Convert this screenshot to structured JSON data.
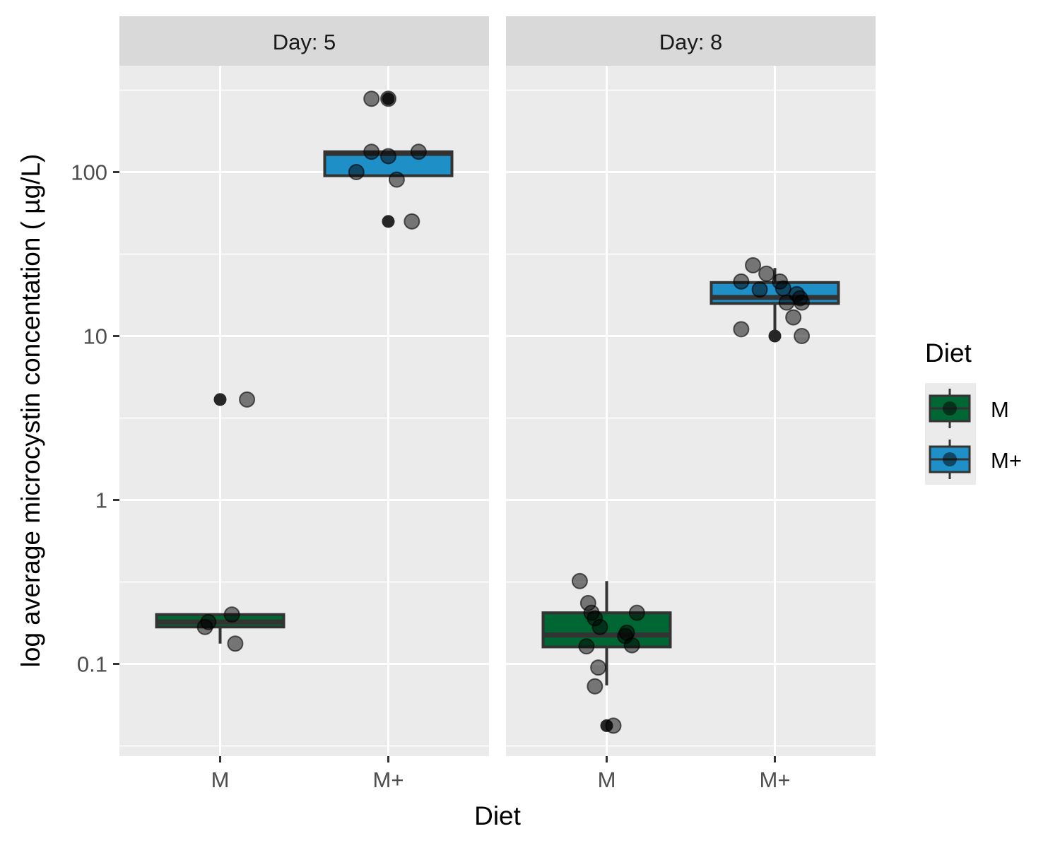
{
  "chart_data": {
    "type": "box",
    "ylabel": "log average microcystin concentation ( µg/L)",
    "xlabel": "Diet",
    "y_scale": "log10",
    "ylim": [
      0.028,
      520
    ],
    "y_ticks": [
      {
        "value": 0.1,
        "label": "0.1"
      },
      {
        "value": 1,
        "label": "1"
      },
      {
        "value": 10,
        "label": "10"
      },
      {
        "value": 100,
        "label": "100"
      }
    ],
    "categories": [
      "M",
      "M+"
    ],
    "legend": {
      "title": "Diet",
      "position": "right",
      "entries": [
        {
          "label": "M",
          "color": "#006633"
        },
        {
          "label": "M+",
          "color": "#1f8fc8"
        }
      ]
    },
    "facets": [
      {
        "label": "Day: 5",
        "groups": [
          {
            "diet": "M",
            "box": {
              "q1": 0.168,
              "median": 0.18,
              "q3": 0.2,
              "whisker_low": 0.133,
              "whisker_high": 0.2
            },
            "outliers": [
              4.1
            ],
            "points": [
              {
                "x": -0.09,
                "y": 0.168
              },
              {
                "x": -0.07,
                "y": 0.18
              },
              {
                "x": 0.07,
                "y": 0.2
              },
              {
                "x": 0.09,
                "y": 0.133
              },
              {
                "x": 0.16,
                "y": 4.1
              }
            ]
          },
          {
            "diet": "M+",
            "box": {
              "q1": 95,
              "median": 130,
              "q3": 133,
              "whisker_low": 95,
              "whisker_high": 133
            },
            "outliers": [
              280,
              50
            ],
            "points": [
              {
                "x": -0.1,
                "y": 280
              },
              {
                "x": 0.0,
                "y": 280
              },
              {
                "x": -0.1,
                "y": 133
              },
              {
                "x": 0.0,
                "y": 125
              },
              {
                "x": 0.18,
                "y": 133
              },
              {
                "x": -0.19,
                "y": 100
              },
              {
                "x": 0.05,
                "y": 90
              },
              {
                "x": 0.14,
                "y": 50
              }
            ]
          }
        ]
      },
      {
        "label": "Day: 8",
        "groups": [
          {
            "diet": "M",
            "box": {
              "q1": 0.127,
              "median": 0.15,
              "q3": 0.205,
              "whisker_low": 0.074,
              "whisker_high": 0.32
            },
            "outliers": [
              0.042
            ],
            "points": [
              {
                "x": -0.16,
                "y": 0.32
              },
              {
                "x": -0.11,
                "y": 0.235
              },
              {
                "x": -0.09,
                "y": 0.205
              },
              {
                "x": -0.07,
                "y": 0.19
              },
              {
                "x": -0.04,
                "y": 0.168
              },
              {
                "x": 0.18,
                "y": 0.205
              },
              {
                "x": 0.12,
                "y": 0.155
              },
              {
                "x": 0.11,
                "y": 0.148
              },
              {
                "x": 0.15,
                "y": 0.13
              },
              {
                "x": -0.12,
                "y": 0.128
              },
              {
                "x": -0.05,
                "y": 0.095
              },
              {
                "x": -0.07,
                "y": 0.073
              },
              {
                "x": 0.04,
                "y": 0.042
              }
            ]
          },
          {
            "diet": "M+",
            "box": {
              "q1": 15.8,
              "median": 17.2,
              "q3": 21.2,
              "whisker_low": 10,
              "whisker_high": 26
            },
            "outliers": [
              10
            ],
            "points": [
              {
                "x": -0.13,
                "y": 27
              },
              {
                "x": -0.05,
                "y": 24
              },
              {
                "x": -0.2,
                "y": 21.5
              },
              {
                "x": 0.03,
                "y": 21.5
              },
              {
                "x": -0.09,
                "y": 19.2
              },
              {
                "x": 0.05,
                "y": 19.5
              },
              {
                "x": 0.13,
                "y": 18
              },
              {
                "x": 0.15,
                "y": 17
              },
              {
                "x": 0.07,
                "y": 16
              },
              {
                "x": 0.16,
                "y": 16
              },
              {
                "x": 0.11,
                "y": 13
              },
              {
                "x": -0.2,
                "y": 11
              },
              {
                "x": 0.16,
                "y": 10
              }
            ]
          }
        ]
      }
    ]
  }
}
